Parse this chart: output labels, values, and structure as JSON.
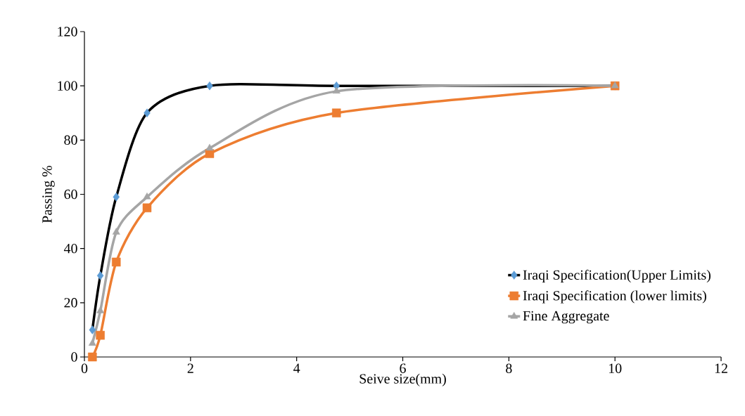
{
  "chart_data": {
    "type": "line",
    "xlabel": "Seive size(mm)",
    "ylabel": "Passing %",
    "x": [
      0.15,
      0.3,
      0.6,
      1.18,
      2.36,
      4.75,
      10
    ],
    "series": [
      {
        "name": "Iraqi Specification(Upper Limits)",
        "color": "#000000",
        "colors": [
          "#5b9bd5",
          "#5b9bd5",
          "#5b9bd5",
          "#5b9bd5",
          "#5b9bd5",
          "#5b9bd5",
          "#5b9bd5"
        ],
        "marker": "diamond",
        "values": [
          10,
          30,
          59,
          90,
          100,
          100,
          100
        ]
      },
      {
        "name": "Iraqi Specification (lower limits)",
        "color": "#ed7d31",
        "marker": "square",
        "values": [
          0,
          8,
          35,
          55,
          75,
          90,
          100
        ]
      },
      {
        "name": "Fine Aggregate",
        "color": "#a5a5a5",
        "marker": "triangle",
        "values": [
          5,
          17,
          46,
          59,
          77,
          98,
          100
        ]
      }
    ],
    "xlim": [
      0,
      12
    ],
    "xticks": [
      0,
      2,
      4,
      6,
      8,
      10,
      12
    ],
    "ylim": [
      0,
      120
    ],
    "yticks": [
      0,
      20,
      40,
      60,
      80,
      100,
      120
    ],
    "grid": false,
    "legend": "bottom right"
  }
}
